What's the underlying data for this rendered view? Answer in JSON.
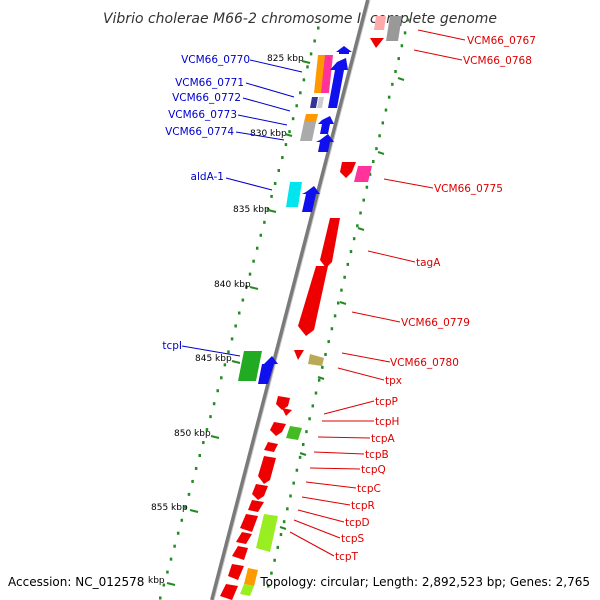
{
  "title": "Vibrio cholerae M66-2 chromosome I, complete genome",
  "footer": {
    "accession": "Accession: NC_012578",
    "topology": "Topology: circular; Length: 2,892,523 bp; Genes: 2,765"
  },
  "colors": {
    "left_label": "#0000cc",
    "right_label": "#dd0000",
    "tick": "#228b22",
    "backbone": "#888888"
  },
  "scale_marks": [
    "825 kbp",
    "830 kbp",
    "835 kbp",
    "840 kbp",
    "845 kbp",
    "850 kbp",
    "855 kbp",
    "kbp"
  ],
  "left_labels": [
    "VCM66_0770",
    "VCM66_0771",
    "VCM66_0772",
    "VCM66_0773",
    "VCM66_0774",
    "aldA-1",
    "tcpI"
  ],
  "right_labels": [
    "VCM66_0767",
    "VCM66_0768",
    "VCM66_0775",
    "tagA",
    "VCM66_0779",
    "VCM66_0780",
    "tpx",
    "tcpP",
    "tcpH",
    "tcpA",
    "tcpB",
    "tcpQ",
    "tcpC",
    "tcpR",
    "tcpD",
    "tcpS",
    "tcpT"
  ]
}
